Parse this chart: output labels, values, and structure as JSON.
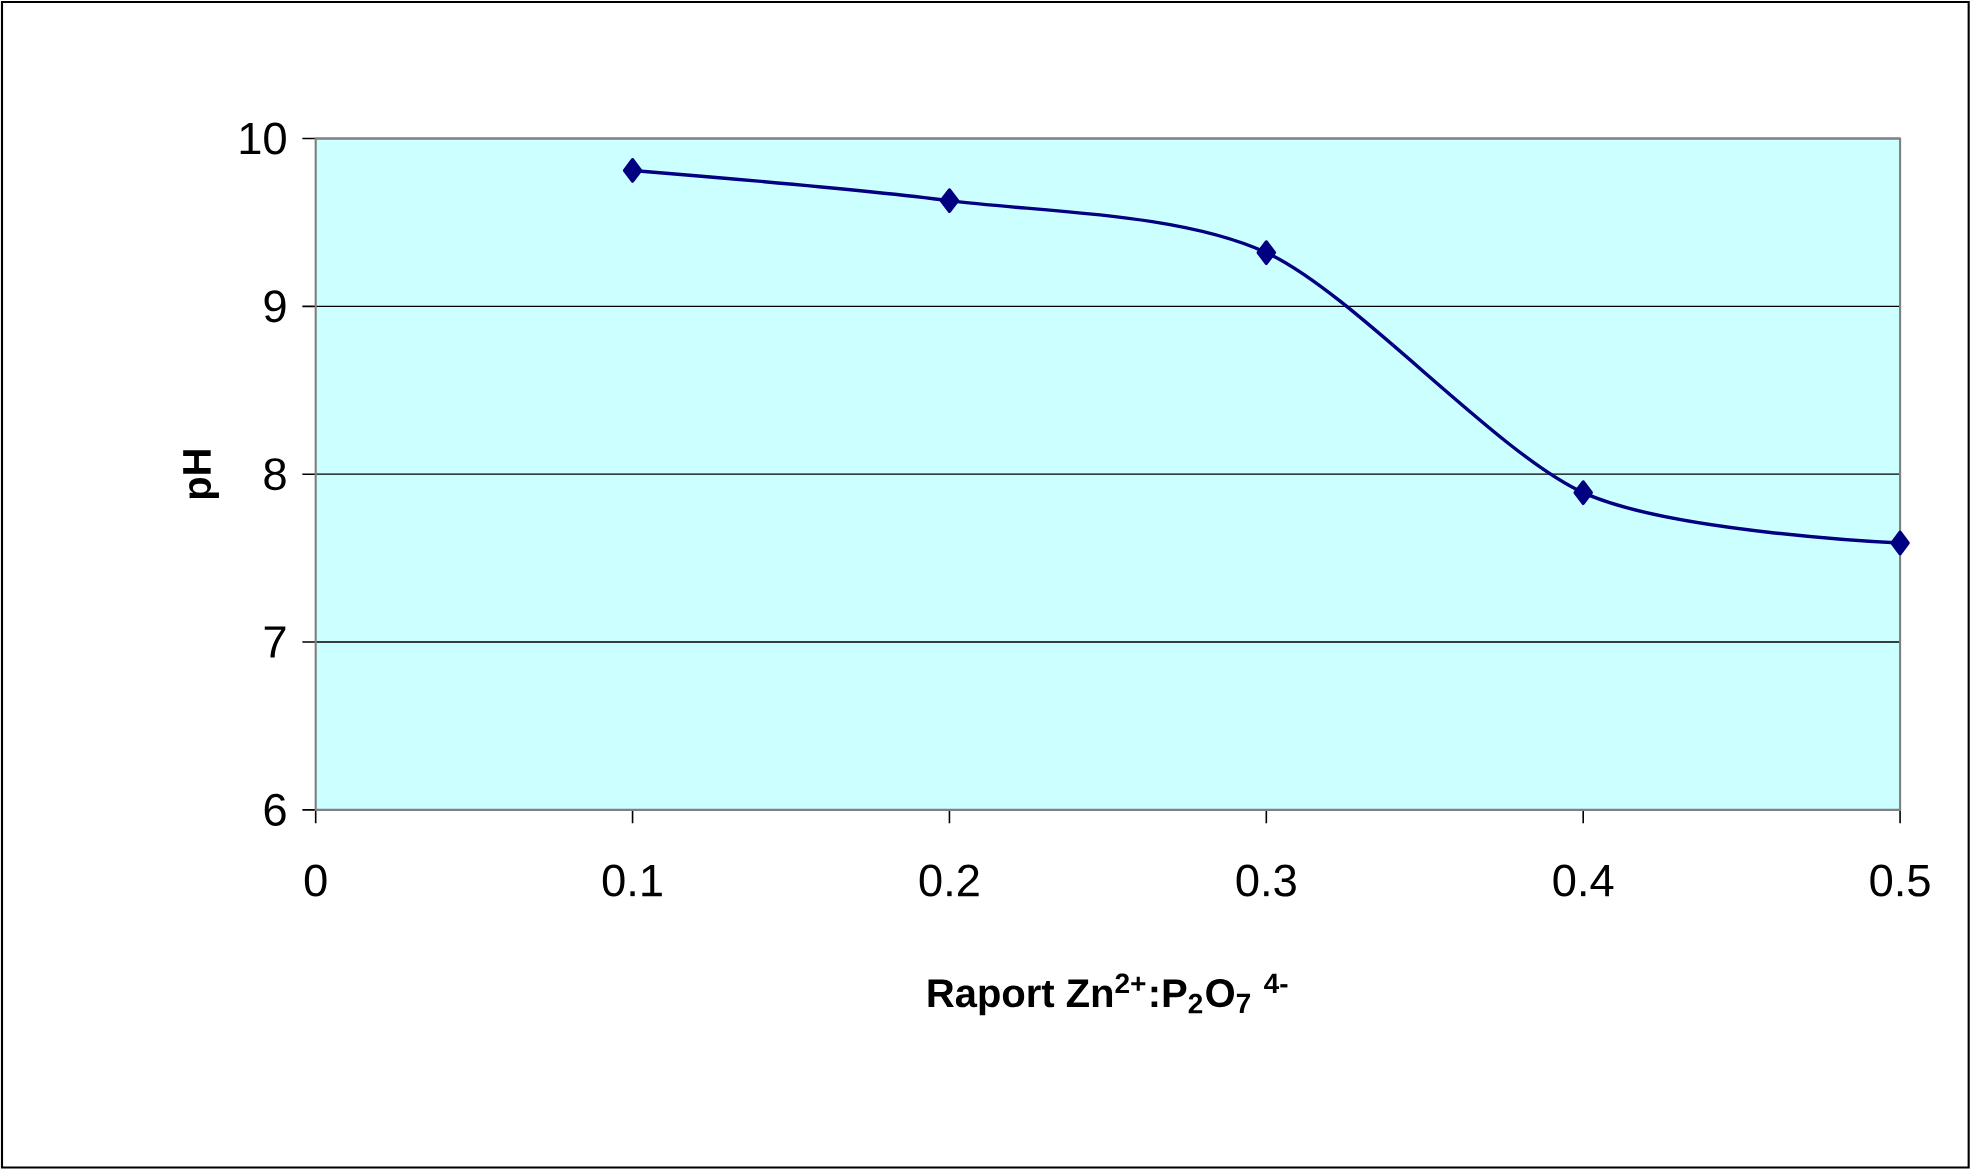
{
  "chart_data": {
    "type": "line",
    "xlabel": "Raport Zn$^{2+}$:P$_{2}$O$_{7}$ $^{4-}$",
    "ylabel": "pH",
    "x": [
      0.1,
      0.2,
      0.3,
      0.4,
      0.5
    ],
    "series": [
      {
        "color": "#000080",
        "values": [
          9.81,
          9.63,
          9.32,
          7.89,
          7.59
        ]
      }
    ],
    "xlim": [
      0,
      0.5
    ],
    "ylim": [
      6,
      10
    ],
    "xticks": [
      0,
      0.1,
      0.2,
      0.3,
      0.4,
      0.5
    ],
    "yticks": [
      6,
      7,
      8,
      9,
      10
    ],
    "grid": "y",
    "marker": "diamond",
    "line_style": "solid"
  }
}
